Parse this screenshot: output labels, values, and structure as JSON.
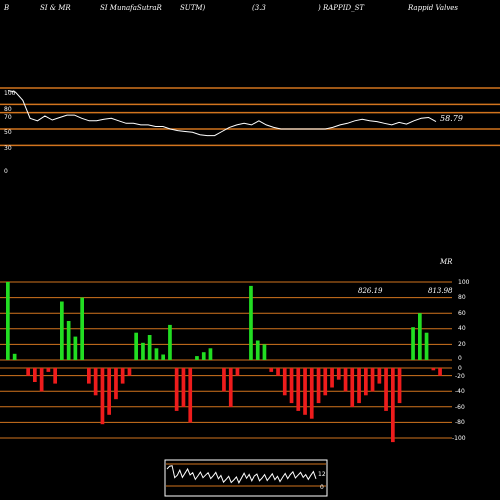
{
  "header": {
    "items": [
      "B",
      "SI & MR",
      "SI MunafaSutraR",
      "SUTM)",
      "(3.3",
      ") RAPPID_ST",
      "Rappid Valves"
    ]
  },
  "rsi_panel": {
    "left_ticks": [
      "100",
      "80",
      "70",
      "50",
      "30",
      "0"
    ],
    "last_value_label": "58.79"
  },
  "mrsi_panel": {
    "label": "MR",
    "right_ticks": [
      "100",
      "80",
      "60",
      "40",
      "20",
      "0",
      "0",
      "-20",
      "-40",
      "-60",
      "-80",
      "-100"
    ],
    "value_labels": [
      "826.19",
      "813.98"
    ]
  },
  "mini_panel": {
    "right_labels": [
      "12",
      "0"
    ]
  },
  "colors": {
    "background": "#000000",
    "guide_line": "#d2741e",
    "line": "#ffffff",
    "positive_bar": "#22dd22",
    "negative_bar": "#ee1c1c"
  },
  "chart_data": [
    {
      "type": "line",
      "title": "",
      "y_ticks": [
        100,
        80,
        70,
        50,
        30,
        0
      ],
      "series": [
        {
          "values": [
            97,
            95,
            85,
            63,
            60,
            66,
            61,
            64,
            67,
            67,
            63,
            60,
            60,
            62,
            63,
            60,
            57,
            57,
            55,
            55,
            53,
            53,
            50,
            48,
            47,
            46,
            43,
            42,
            42,
            47,
            52,
            55,
            57,
            55,
            60,
            55,
            52,
            50,
            50,
            50,
            50,
            50,
            50,
            50,
            52,
            55,
            57,
            60,
            62,
            60,
            59,
            57,
            55,
            58,
            56,
            60,
            63,
            64,
            59
          ]
        }
      ],
      "last_value": 58.79
    },
    {
      "type": "bar",
      "title": "MR",
      "y_ticks": [
        100,
        80,
        60,
        40,
        20,
        0,
        -20,
        -40,
        -60,
        -80,
        -100
      ],
      "values": [
        100,
        8,
        0,
        -10,
        -18,
        -30,
        -5,
        -20,
        75,
        50,
        30,
        80,
        -20,
        -35,
        -72,
        -60,
        -40,
        -20,
        -10,
        35,
        22,
        32,
        15,
        7,
        45,
        -55,
        -50,
        -70,
        5,
        10,
        15,
        0,
        -30,
        -50,
        -10,
        0,
        95,
        25,
        20,
        -5,
        -10,
        -35,
        -45,
        -55,
        -60,
        -65,
        -45,
        -35,
        -25,
        -15,
        -30,
        -50,
        -45,
        -35,
        -30,
        -20,
        -55,
        -95,
        -45,
        0,
        42,
        60,
        35,
        -3,
        -10
      ],
      "annotations": [
        "826.19",
        "813.98"
      ]
    }
  ]
}
